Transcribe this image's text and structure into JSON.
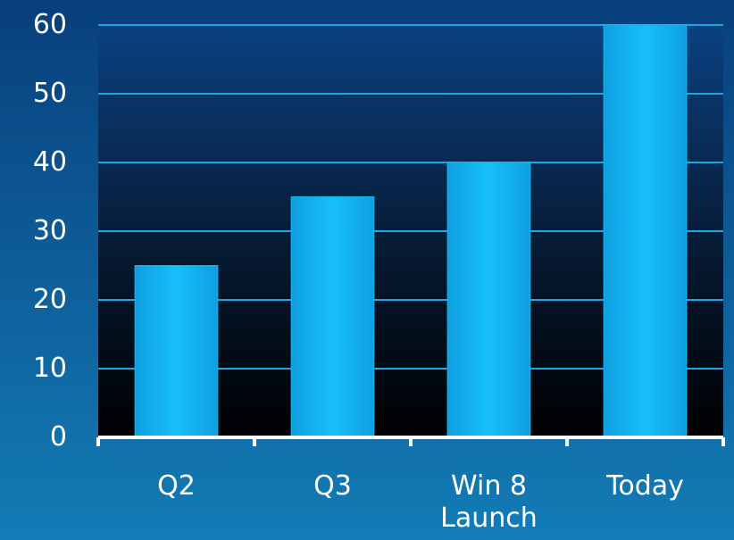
{
  "chart_data": {
    "type": "bar",
    "categories": [
      "Q2",
      "Q3",
      "Win 8\nLaunch",
      "Today"
    ],
    "values": [
      25,
      35,
      40,
      60
    ],
    "color": "#12b8f0",
    "ylim": [
      0,
      60
    ],
    "yticks": [
      0,
      10,
      20,
      30,
      40,
      50,
      60
    ],
    "grid": true
  }
}
